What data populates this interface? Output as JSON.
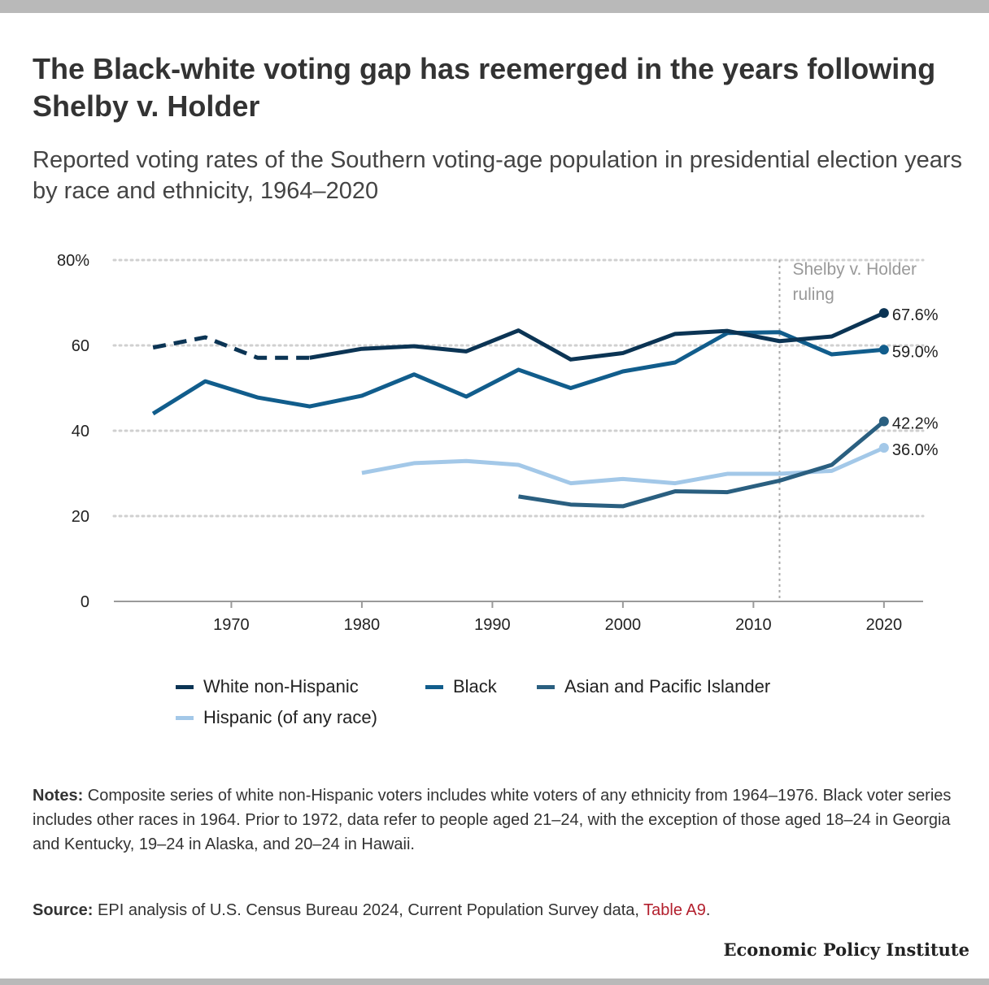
{
  "header": {
    "title": "The Black-white voting gap has reemerged in the years following Shelby v. Holder",
    "subtitle": "Reported voting rates of the Southern voting-age population in presidential election years by race and ethnicity, 1964–2020"
  },
  "chart_data": {
    "type": "line",
    "title": "The Black-white voting gap has reemerged in the years following Shelby v. Holder",
    "subtitle": "Reported voting rates of the Southern voting-age population in presidential election years by race and ethnicity, 1964–2020",
    "xlabel": "",
    "ylabel": "",
    "xlim": [
      1961,
      2023
    ],
    "ylim": [
      0,
      80
    ],
    "x_ticks": [
      1970,
      1980,
      1990,
      2000,
      2010,
      2020
    ],
    "x_tick_labels": [
      "1970",
      "1980",
      "1990",
      "2000",
      "2010",
      "2020"
    ],
    "y_ticks": [
      0,
      20,
      40,
      60,
      80
    ],
    "y_tick_labels": [
      "0",
      "20",
      "40",
      "60",
      "80%"
    ],
    "grid": "horizontal dotted",
    "legend_position": "bottom",
    "annotation": {
      "x": 2012,
      "line1": "Shelby v. Holder",
      "line2": "ruling"
    },
    "series": [
      {
        "name": "White non-Hispanic",
        "color": "#0b3454",
        "dashed_through": 1976,
        "x": [
          1964,
          1968,
          1972,
          1976,
          1980,
          1984,
          1988,
          1992,
          1996,
          2000,
          2004,
          2008,
          2012,
          2016,
          2020
        ],
        "values": [
          59.5,
          61.9,
          57.1,
          57.1,
          59.2,
          59.8,
          58.6,
          63.5,
          56.7,
          58.2,
          62.7,
          63.4,
          61.0,
          62.1,
          67.6
        ],
        "end_label": "67.6%"
      },
      {
        "name": "Black",
        "color": "#115d8c",
        "x": [
          1964,
          1968,
          1972,
          1976,
          1980,
          1984,
          1988,
          1992,
          1996,
          2000,
          2004,
          2008,
          2012,
          2016,
          2020
        ],
        "values": [
          44.0,
          51.6,
          47.8,
          45.7,
          48.2,
          53.2,
          48.0,
          54.3,
          50.0,
          53.9,
          56.0,
          62.9,
          63.1,
          57.9,
          59.0
        ],
        "end_label": "59.0%"
      },
      {
        "name": "Asian and Pacific Islander",
        "color": "#2a5f80",
        "x": [
          1992,
          1996,
          2000,
          2004,
          2008,
          2012,
          2016,
          2020
        ],
        "values": [
          24.6,
          22.7,
          22.3,
          25.8,
          25.6,
          28.3,
          32.0,
          42.2
        ],
        "end_label": "42.2%"
      },
      {
        "name": "Hispanic (of any race)",
        "color": "#a3c8e8",
        "x": [
          1980,
          1984,
          1988,
          1992,
          1996,
          2000,
          2004,
          2008,
          2012,
          2016,
          2020
        ],
        "values": [
          30.1,
          32.4,
          32.9,
          32.0,
          27.7,
          28.7,
          27.7,
          29.9,
          29.9,
          30.6,
          36.0
        ],
        "end_label": "36.0%"
      }
    ]
  },
  "notes": {
    "label": "Notes:",
    "text": " Composite series of white non-Hispanic voters includes white voters of any ethnicity from 1964–1976. Black voter series includes other races in 1964. Prior to 1972, data refer to people aged 21–24, with the exception of those aged 18–24 in Georgia and Kentucky, 19–24 in Alaska, and 20–24 in Hawaii."
  },
  "source": {
    "label": "Source:",
    "text": " EPI analysis of U.S. Census Bureau 2024, Current Population Survey data, ",
    "link": "Table A9",
    "tail": "."
  },
  "brand": "Economic Policy Institute"
}
